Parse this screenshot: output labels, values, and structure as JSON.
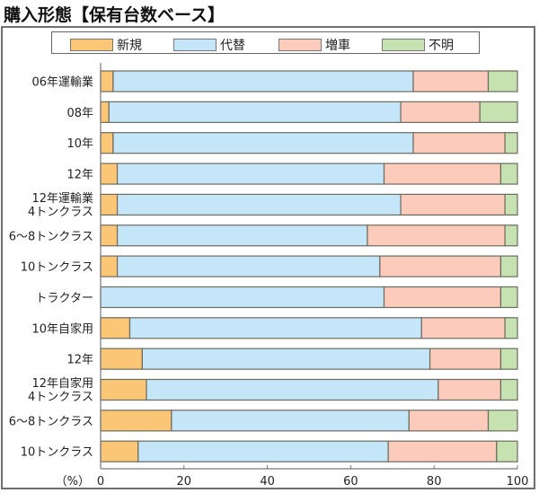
{
  "title": "購入形態【保有台数ベース】",
  "chart_data": {
    "type": "bar",
    "orientation": "horizontal",
    "stacked": "percent",
    "title": "購入形態【保有台数ベース】",
    "xlabel": "（%）",
    "ylabel": "",
    "xlim": [
      0,
      100
    ],
    "xticks": [
      0,
      20,
      40,
      60,
      80,
      100
    ],
    "xtick_labels": [
      "0",
      "20",
      "40",
      "60",
      "80",
      "100"
    ],
    "unit_label": "（%）",
    "legend_position": "top",
    "grid": false,
    "categories": [
      [
        "06年運輸業"
      ],
      [
        "08年"
      ],
      [
        "10年"
      ],
      [
        "12年"
      ],
      [
        "12年運輸業",
        "4トンクラス"
      ],
      [
        "6〜8トンクラス"
      ],
      [
        "10トンクラス"
      ],
      [
        "トラクター"
      ],
      [
        "10年自家用"
      ],
      [
        "12年"
      ],
      [
        "12年自家用",
        "4トンクラス"
      ],
      [
        "6〜8トンクラス"
      ],
      [
        "10トンクラス"
      ]
    ],
    "series": [
      {
        "name": "新規",
        "color": "#fcc677",
        "values": [
          3,
          2,
          3,
          4,
          4,
          4,
          4,
          0,
          7,
          10,
          11,
          17,
          9
        ]
      },
      {
        "name": "代替",
        "color": "#c5e6f9",
        "values": [
          72,
          70,
          72,
          64,
          68,
          60,
          63,
          68,
          70,
          69,
          70,
          57,
          60
        ]
      },
      {
        "name": "増車",
        "color": "#fccbbb",
        "values": [
          18,
          19,
          22,
          28,
          25,
          33,
          29,
          28,
          20,
          17,
          15,
          19,
          26
        ]
      },
      {
        "name": "不明",
        "color": "#c6e2b1",
        "values": [
          7,
          9,
          3,
          4,
          3,
          3,
          4,
          4,
          3,
          4,
          4,
          7,
          5
        ]
      }
    ]
  }
}
